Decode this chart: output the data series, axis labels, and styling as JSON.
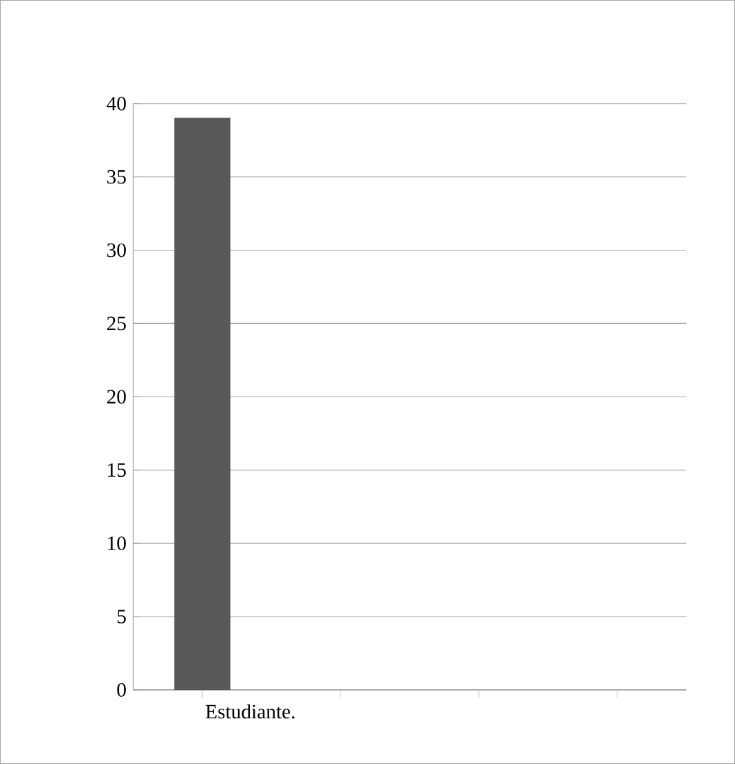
{
  "chart_data": {
    "type": "bar",
    "categories": [
      "Estudiante.",
      null,
      null,
      null
    ],
    "values": [
      39,
      null,
      null,
      null
    ],
    "color": "#595959",
    "ylim": [
      0,
      40
    ],
    "yticks": [
      0,
      5,
      10,
      15,
      20,
      25,
      30,
      35,
      40
    ],
    "grid": "y"
  }
}
